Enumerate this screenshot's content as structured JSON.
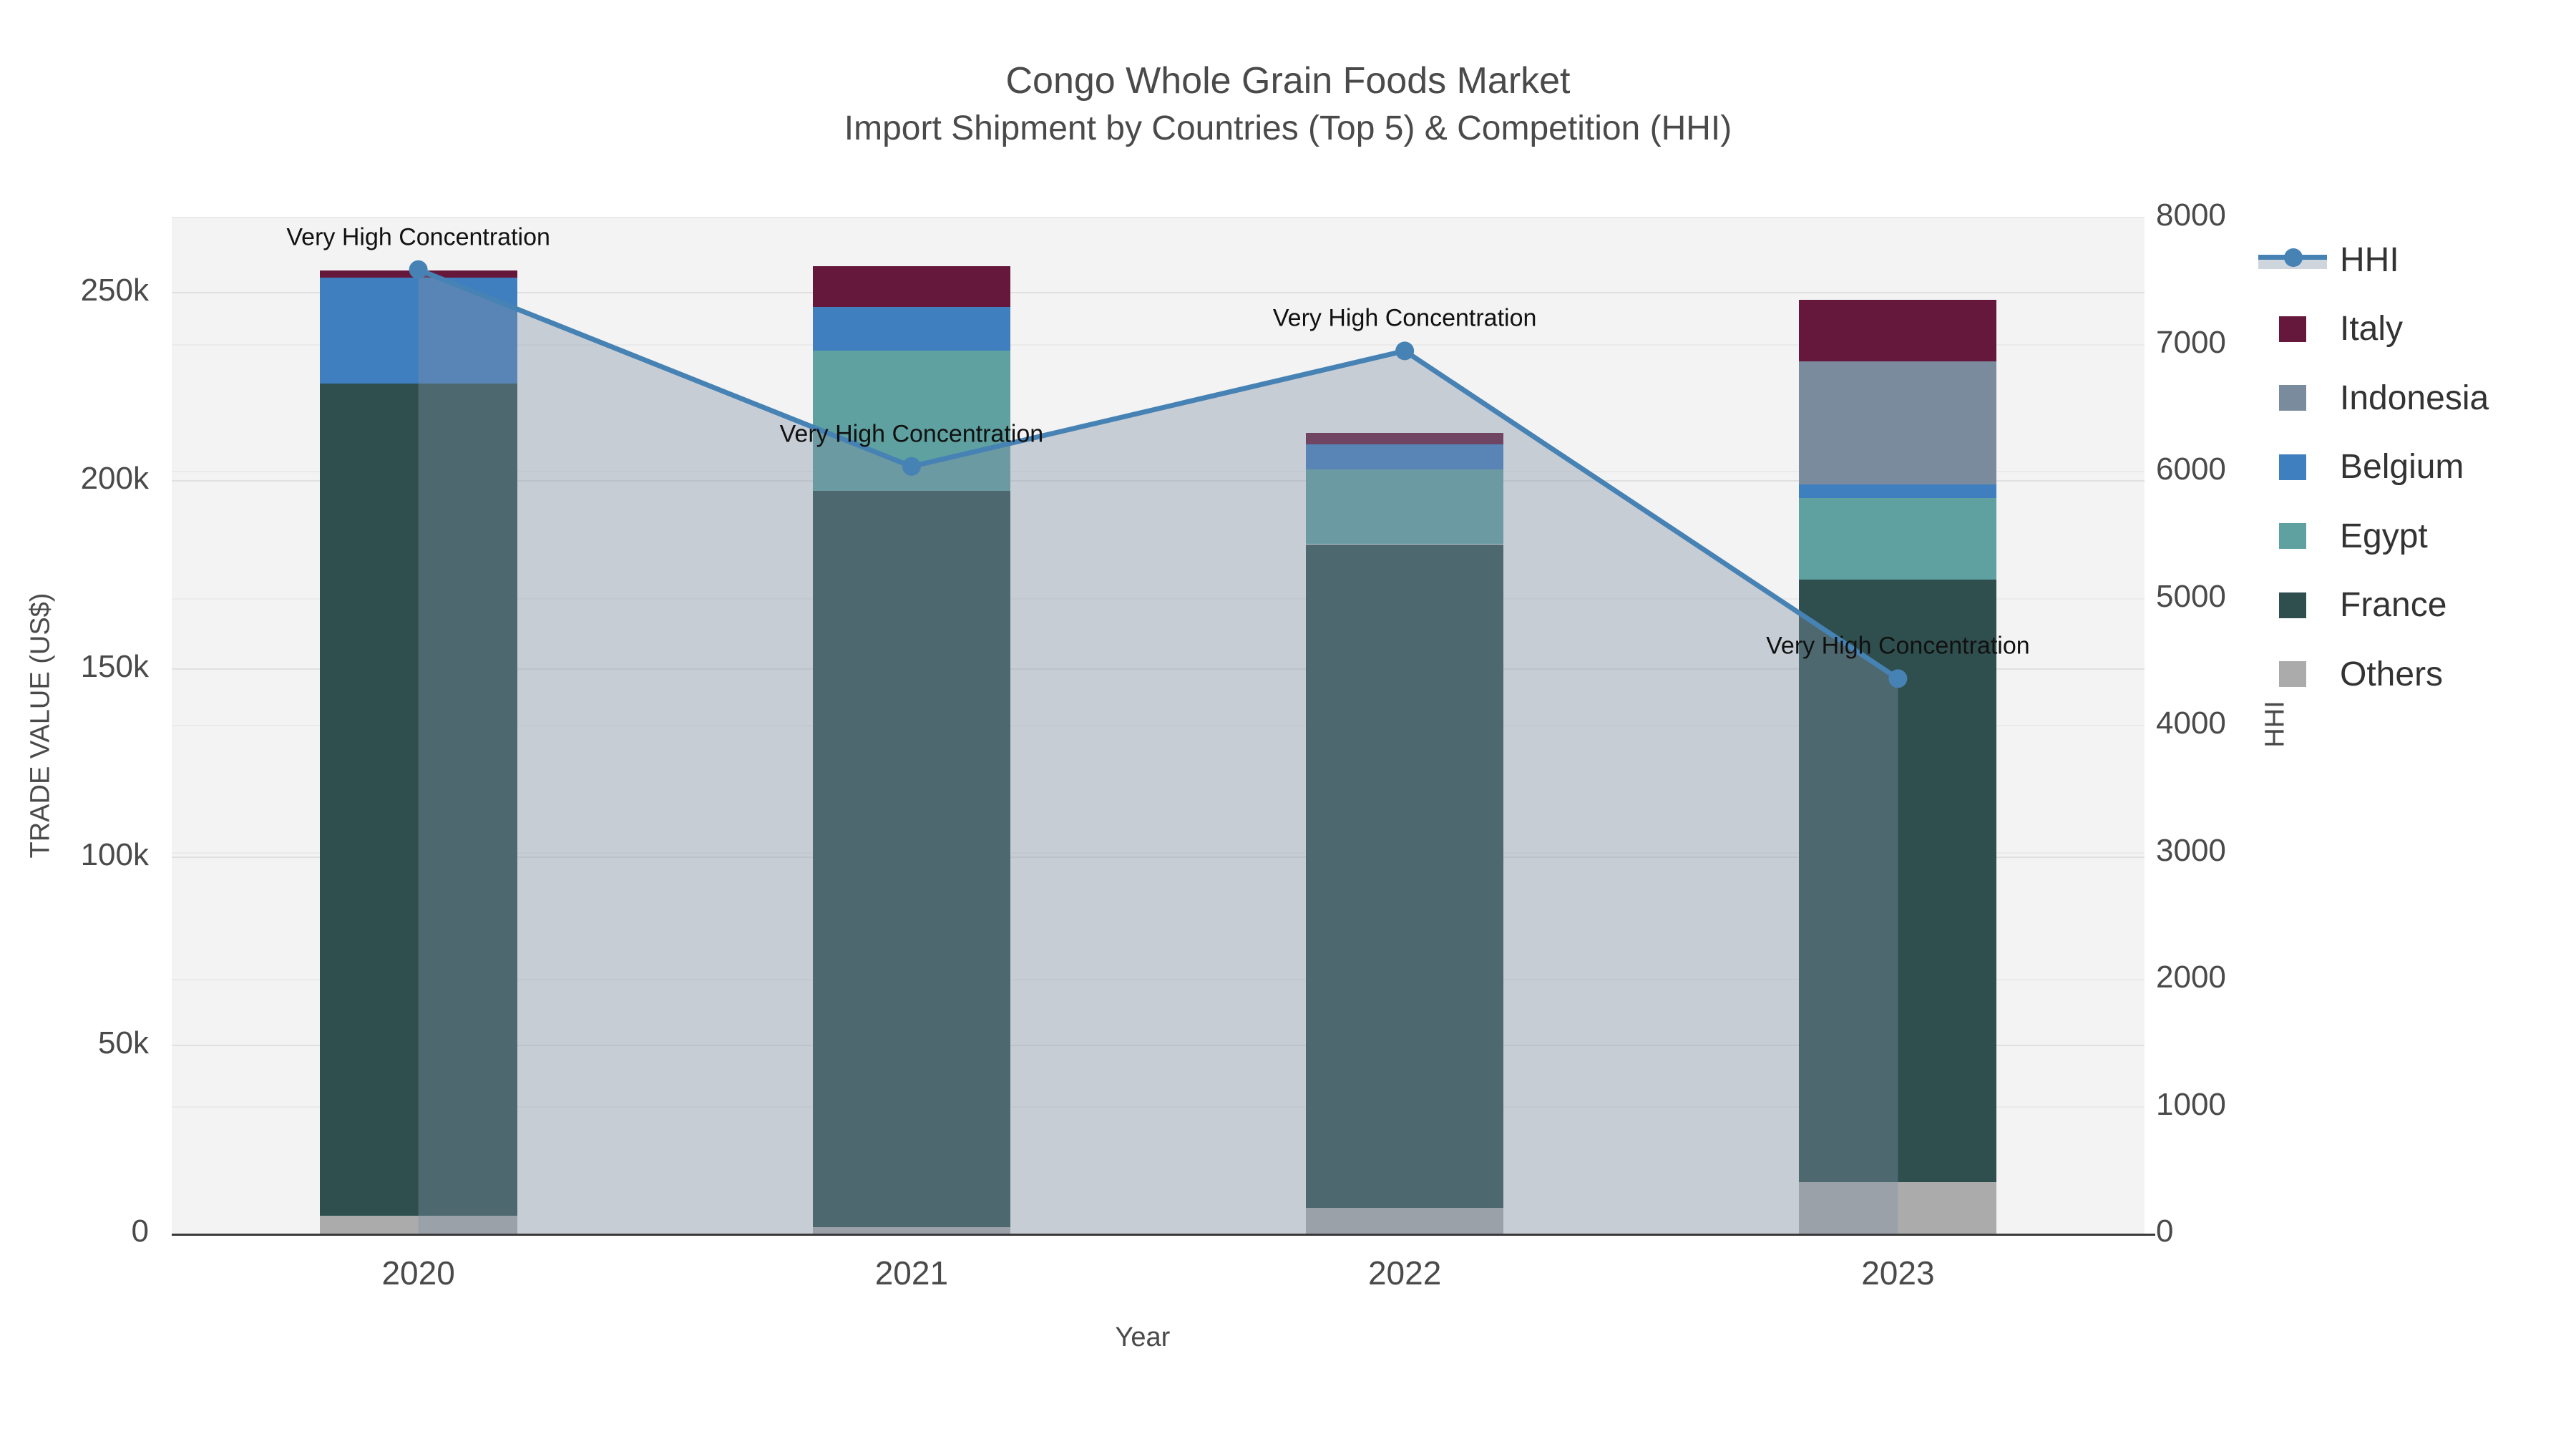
{
  "title": {
    "line1": "Congo Whole Grain Foods Market",
    "line2": "Import Shipment by Countries (Top 5) & Competition (HHI)"
  },
  "axes": {
    "left": {
      "title": "TRADE VALUE (US$)",
      "tick_labels": [
        "0",
        "50k",
        "100k",
        "150k",
        "200k",
        "250k"
      ],
      "tick_values": [
        0,
        50000,
        100000,
        150000,
        200000,
        250000
      ],
      "max": 270000
    },
    "right": {
      "title": "HHI",
      "tick_labels": [
        "0",
        "1000",
        "2000",
        "3000",
        "4000",
        "5000",
        "6000",
        "7000",
        "8000"
      ],
      "tick_values": [
        0,
        1000,
        2000,
        3000,
        4000,
        5000,
        6000,
        7000,
        8000
      ],
      "max": 8000
    },
    "x": {
      "title": "Year",
      "tick_labels": [
        "2020",
        "2021",
        "2022",
        "2023"
      ]
    }
  },
  "chart_data": {
    "type": "bar",
    "stacked": true,
    "secondary_line": true,
    "categories": [
      "2020",
      "2021",
      "2022",
      "2023"
    ],
    "series": [
      {
        "name": "Others",
        "color": "#ABABAB",
        "values": [
          4800,
          1700,
          6800,
          13700
        ]
      },
      {
        "name": "France",
        "color": "#2F4F4F",
        "values": [
          221100,
          195600,
          176400,
          160100
        ]
      },
      {
        "name": "Egypt",
        "color": "#5FA0A0",
        "values": [
          0,
          37400,
          19800,
          21700
        ]
      },
      {
        "name": "Belgium",
        "color": "#3F7FBF",
        "values": [
          28100,
          11600,
          6800,
          3600
        ]
      },
      {
        "name": "Indonesia",
        "color": "#7A8B9D",
        "values": [
          0,
          0,
          0,
          32700
        ]
      },
      {
        "name": "Italy",
        "color": "#66173C",
        "values": [
          1900,
          10800,
          2900,
          16400
        ]
      }
    ],
    "line_series": {
      "name": "HHI",
      "axis": "right",
      "color": "#4682B4",
      "fill_color": "rgba(130,145,165,0.38)",
      "values": [
        7590,
        6040,
        6950,
        4370
      ]
    },
    "title": "Congo Whole Grain Foods Market — Import Shipment by Countries (Top 5) & Competition (HHI)",
    "xlabel": "Year",
    "ylabel": "TRADE VALUE (US$)",
    "ylabel_right": "HHI",
    "ylim_left": [
      0,
      270000
    ],
    "ylim_right": [
      0,
      8000
    ],
    "grid": true,
    "legend_position": "right"
  },
  "annotations": [
    {
      "text": "Very High Concentration",
      "category": "2020"
    },
    {
      "text": "Very High Concentration",
      "category": "2021"
    },
    {
      "text": "Very High Concentration",
      "category": "2022"
    },
    {
      "text": "Very High Concentration",
      "category": "2023"
    }
  ],
  "legend": {
    "items": [
      {
        "label": "HHI",
        "type": "line",
        "color": "#4682B4"
      },
      {
        "label": "Italy",
        "type": "swatch",
        "color": "#66173C"
      },
      {
        "label": "Indonesia",
        "type": "swatch",
        "color": "#7A8B9D"
      },
      {
        "label": "Belgium",
        "type": "swatch",
        "color": "#3F7FBF"
      },
      {
        "label": "Egypt",
        "type": "swatch",
        "color": "#5FA0A0"
      },
      {
        "label": "France",
        "type": "swatch",
        "color": "#2F4F4F"
      },
      {
        "label": "Others",
        "type": "swatch",
        "color": "#ABABAB"
      }
    ]
  },
  "colors": {
    "plot_bg": "#F3F3F3",
    "grid_major": "#E0E0E0",
    "grid_minor": "#EAEAEA",
    "axis_line": "#3A3A3A",
    "text": "#4A4A4A",
    "annotation": "#111111"
  }
}
